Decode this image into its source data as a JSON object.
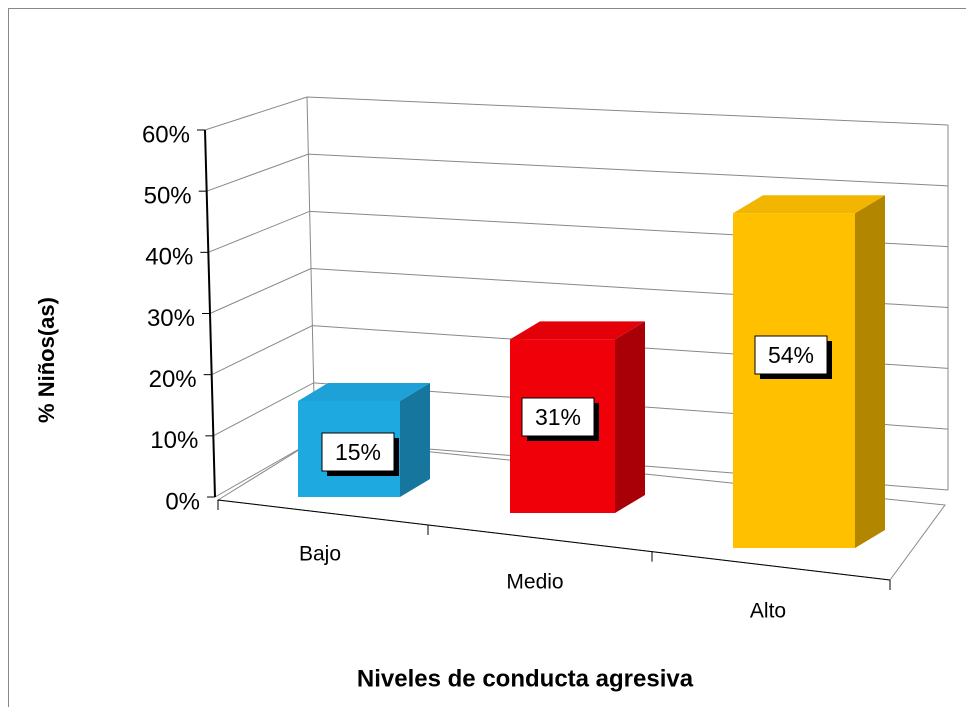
{
  "chart_data": {
    "type": "bar3d",
    "categories": [
      "Bajo",
      "Medio",
      "Alto"
    ],
    "values": [
      15,
      31,
      54
    ],
    "value_labels": [
      "15%",
      "31%",
      "54%"
    ],
    "colors": [
      "#1fa9e1",
      "#f00008",
      "#ffc000"
    ],
    "ylabel": "% Niños(as)",
    "xlabel": "Niveles de conducta agresiva",
    "ylim": [
      0,
      60
    ],
    "yticks": [
      {
        "value": 0,
        "label": "0%"
      },
      {
        "value": 10,
        "label": "10%"
      },
      {
        "value": 20,
        "label": "20%"
      },
      {
        "value": 30,
        "label": "30%"
      },
      {
        "value": 40,
        "label": "40%"
      },
      {
        "value": 50,
        "label": "50%"
      },
      {
        "value": 60,
        "label": "60%"
      }
    ],
    "grid": true
  }
}
